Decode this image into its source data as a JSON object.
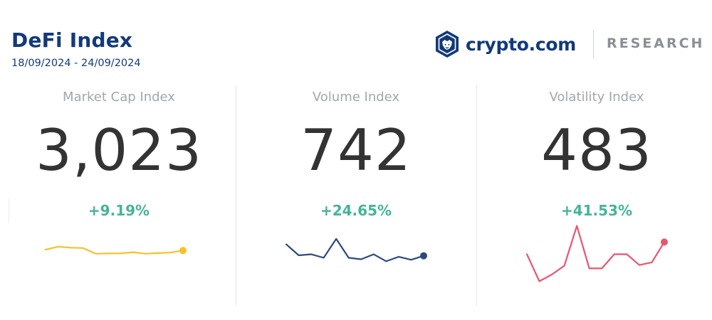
{
  "header": {
    "title": "DeFi Index",
    "date_range": "18/09/2024 - 24/09/2024"
  },
  "brand": {
    "name": "crypto.com",
    "section": "RESEARCH",
    "logo_icon": "crypto-com-lion-shield-icon"
  },
  "colors": {
    "title": "#123a7a",
    "positive_change": "#43b49a",
    "market_cap_line": "#f6c12b",
    "volume_line": "#2c4a7e",
    "volatility_line": "#e8556f"
  },
  "chart_data": [
    {
      "type": "line",
      "title": "Market Cap Index",
      "value": "3,023",
      "change": "+9.19%",
      "color": "#f6c12b",
      "values": [
        20,
        29,
        26,
        25,
        7,
        8,
        8,
        12,
        7,
        9,
        11,
        17
      ]
    },
    {
      "type": "line",
      "title": "Volume Index",
      "value": "742",
      "change": "+24.65%",
      "color": "#2c4a7e",
      "values": [
        52,
        30,
        32,
        25,
        63,
        25,
        22,
        32,
        18,
        27,
        21,
        29
      ]
    },
    {
      "type": "line",
      "title": "Volatility Index",
      "value": "483",
      "change": "+41.53%",
      "color": "#e8556f",
      "values": [
        50,
        10,
        20,
        33,
        92,
        29,
        29,
        50,
        50,
        34,
        38,
        68
      ]
    }
  ]
}
